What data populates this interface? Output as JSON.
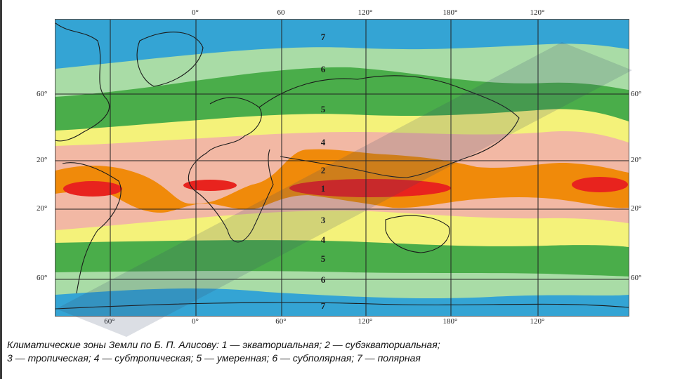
{
  "map": {
    "top_longitudes": [
      "0°",
      "60",
      "120°",
      "180°",
      "120°"
    ],
    "bottom_longitudes": [
      "60°",
      "0°",
      "60°",
      "120°",
      "180°",
      "120°"
    ],
    "left_latitudes": [
      "60°",
      "20°",
      "20°",
      "60°"
    ],
    "right_latitudes": [
      "60°",
      "20°",
      "20°",
      "60°"
    ],
    "zones": {
      "z7_north": "7",
      "z6_north": "6",
      "z5_north": "5",
      "z4_north": "4",
      "z2": "2",
      "z1": "1",
      "z3": "3",
      "z4_south": "4",
      "z5_south": "5",
      "z6_south": "6",
      "z7_south": "7"
    },
    "zone_colors": {
      "polar": "#34a4d4",
      "subpolar": "#a9dca6",
      "temperate": "#4aad4a",
      "subtropical": "#f4f27a",
      "tropical": "#f2b8a4",
      "subequatorial": "#f08a0a",
      "equatorial": "#e8231e"
    }
  },
  "caption": {
    "line1": "Климатические зоны Земли по Б. П. Алисову: 1 — экваториальная; 2 — субэкваториальная;",
    "line2": "3 — тропическая; 4 — субтропическая; 5 — умеренная; 6 — субполярная; 7 — полярная"
  }
}
